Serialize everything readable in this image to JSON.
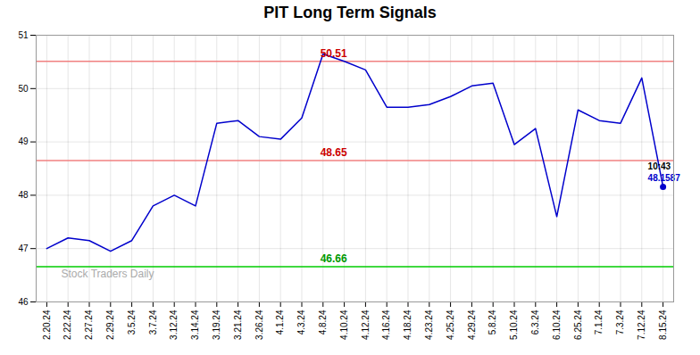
{
  "chart_data": {
    "type": "line",
    "title": "PIT Long Term Signals",
    "categories": [
      "2.20.24",
      "2.22.24",
      "2.27.24",
      "2.29.24",
      "3.5.24",
      "3.7.24",
      "3.12.24",
      "3.14.24",
      "3.19.24",
      "3.21.24",
      "3.26.24",
      "4.1.24",
      "4.3.24",
      "4.8.24",
      "4.10.24",
      "4.12.24",
      "4.16.24",
      "4.18.24",
      "4.23.24",
      "4.25.24",
      "4.29.24",
      "5.8.24",
      "5.10.24",
      "6.3.24",
      "6.10.24",
      "6.25.24",
      "7.1.24",
      "7.3.24",
      "7.12.24",
      "8.15.24"
    ],
    "values": [
      47.0,
      47.2,
      47.15,
      46.95,
      47.15,
      47.8,
      48.0,
      47.8,
      49.35,
      49.4,
      49.1,
      49.05,
      49.45,
      50.65,
      50.51,
      50.35,
      49.65,
      49.65,
      49.7,
      49.85,
      50.05,
      50.1,
      48.95,
      49.25,
      47.6,
      49.6,
      49.4,
      49.35,
      50.2,
      48.1587
    ],
    "color": "#0000cc",
    "ylim": [
      46,
      51
    ],
    "yticks": [
      46,
      47,
      48,
      49,
      50,
      51
    ],
    "grid": true,
    "reference_lines": [
      {
        "value": 50.51,
        "label": "50.51",
        "color": "#f08080",
        "label_color": "#cc0000"
      },
      {
        "value": 48.65,
        "label": "48.65",
        "color": "#f08080",
        "label_color": "#cc0000"
      },
      {
        "value": 46.66,
        "label": "46.66",
        "color": "#00cc00",
        "label_color": "#009900"
      }
    ],
    "annotations": [
      {
        "text": "10:43",
        "color": "#000000"
      },
      {
        "text": "48.1587",
        "color": "#0000cc"
      }
    ],
    "watermark": {
      "text": "Stock Traders Daily",
      "color": "#aaaaaa"
    }
  }
}
